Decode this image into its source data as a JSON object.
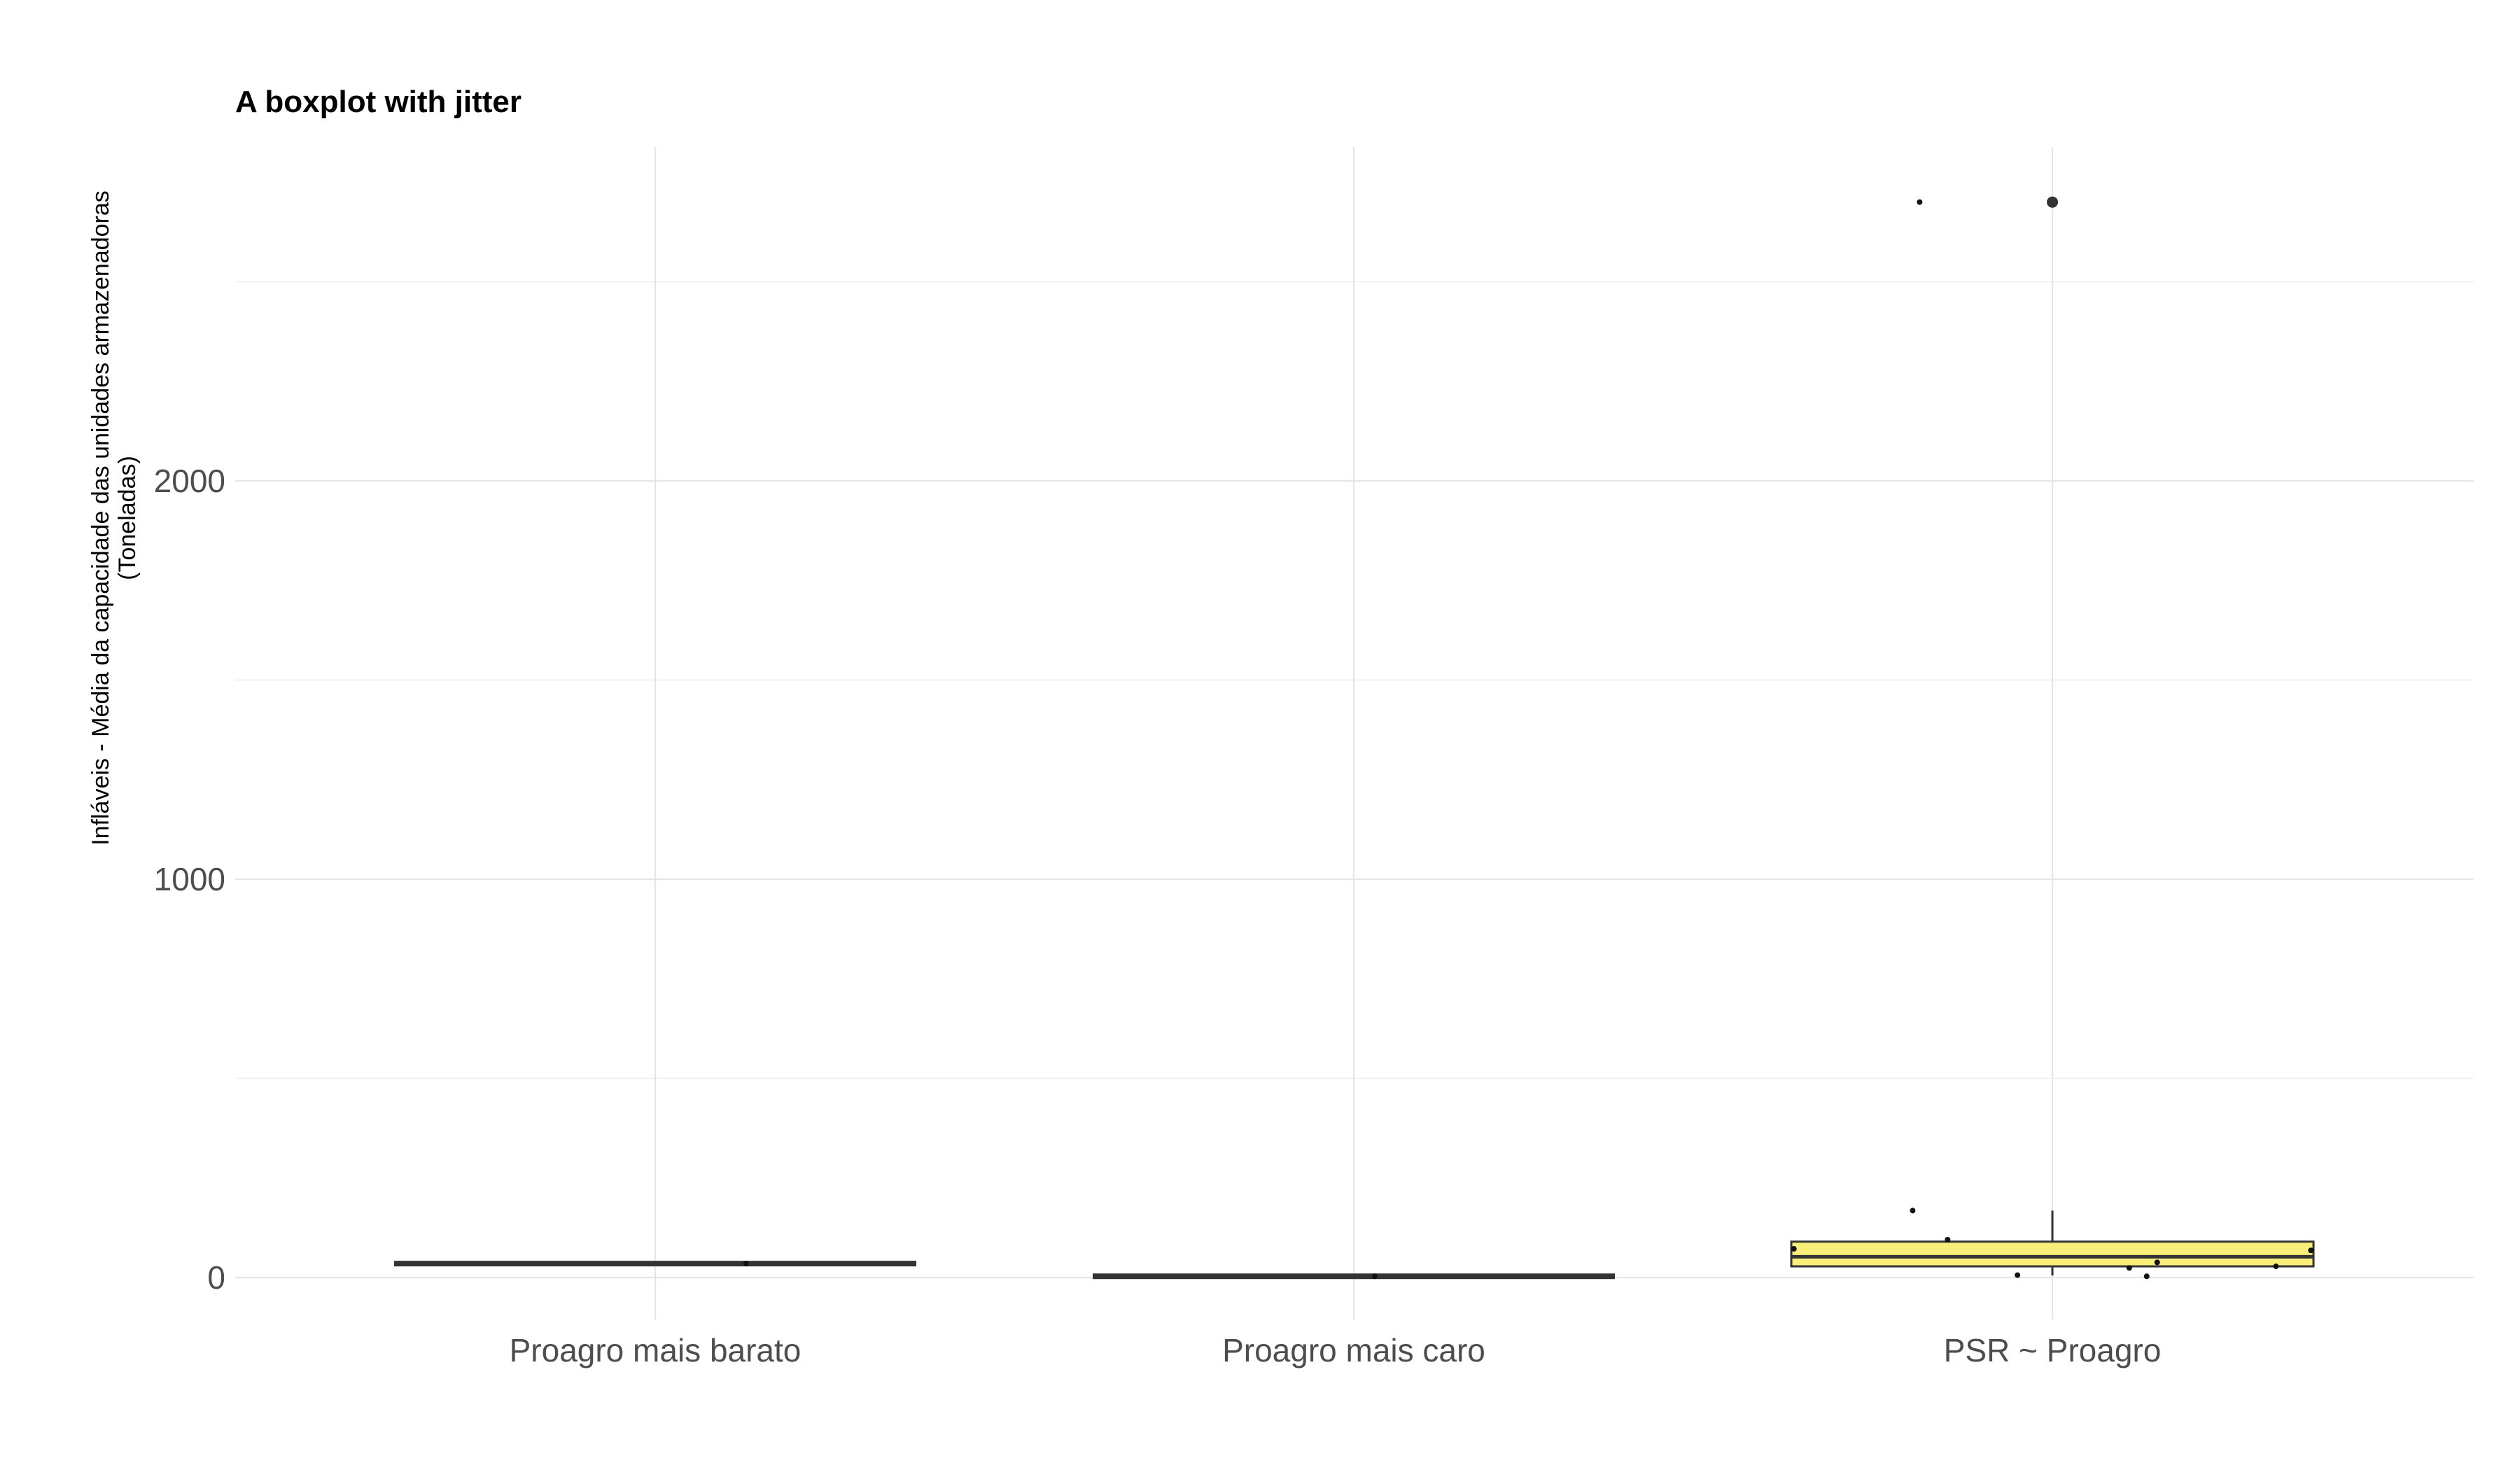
{
  "chart_data": {
    "type": "boxplot",
    "title": "A boxplot with jitter",
    "xlabel": "",
    "ylabel": [
      "Infláveis - Média da capacidade das unidades armazenadoras",
      "(Toneladas)"
    ],
    "categories": [
      "Proagro mais barato",
      "Proagro mais caro",
      "PSR ~ Proagro"
    ],
    "y_ticks": [
      0,
      1000,
      2000
    ],
    "ylim": [
      -120,
      2840
    ],
    "grid": true,
    "colors": {
      "box_fill_highlight": "#f9ee7a",
      "box_stroke": "#333333",
      "point": "#111111"
    },
    "boxes": [
      {
        "category": "Proagro mais barato",
        "min": 35,
        "q1": 35,
        "median": 35,
        "q3": 35,
        "max": 35,
        "outliers": [],
        "highlight": false
      },
      {
        "category": "Proagro mais caro",
        "min": 3,
        "q1": 3,
        "median": 3,
        "q3": 3,
        "max": 3,
        "outliers": [],
        "highlight": false
      },
      {
        "category": "PSR ~ Proagro",
        "min": 5,
        "q1": 28,
        "median": 52,
        "q3": 90,
        "max": 168,
        "outliers": [
          2700
        ],
        "highlight": true
      }
    ],
    "jitter_points": [
      {
        "category": "Proagro mais barato",
        "offset": 0.13,
        "y": 35
      },
      {
        "category": "Proagro mais caro",
        "offset": 0.03,
        "y": 3
      },
      {
        "category": "PSR ~ Proagro",
        "offset": -0.19,
        "y": 2700
      },
      {
        "category": "PSR ~ Proagro",
        "offset": -0.2,
        "y": 168
      },
      {
        "category": "PSR ~ Proagro",
        "offset": -0.15,
        "y": 95
      },
      {
        "category": "PSR ~ Proagro",
        "offset": -0.37,
        "y": 72
      },
      {
        "category": "PSR ~ Proagro",
        "offset": 0.37,
        "y": 68
      },
      {
        "category": "PSR ~ Proagro",
        "offset": 0.15,
        "y": 38
      },
      {
        "category": "PSR ~ Proagro",
        "offset": 0.32,
        "y": 28
      },
      {
        "category": "PSR ~ Proagro",
        "offset": 0.11,
        "y": 24
      },
      {
        "category": "PSR ~ Proagro",
        "offset": -0.05,
        "y": 6
      },
      {
        "category": "PSR ~ Proagro",
        "offset": 0.135,
        "y": 3
      }
    ]
  }
}
